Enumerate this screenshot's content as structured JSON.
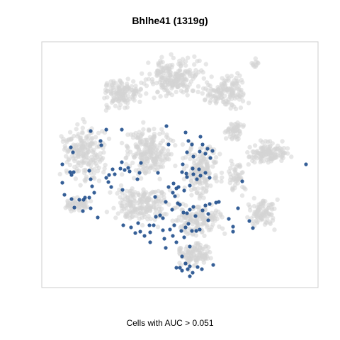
{
  "chart_data": {
    "type": "scatter",
    "title": "Bhlhe41 (1319g)",
    "xlabel": "Cells with AUC > 0.051",
    "ylabel": "",
    "axes_visible": false,
    "grid": false,
    "colors": {
      "background_cells": "#d3d3d3",
      "highlighted_cells": "#1f4e8c",
      "frame": "#cccccc"
    },
    "series": [
      {
        "role": "highlighted",
        "points": [
          [
            128,
            185
          ],
          [
            150,
            183
          ],
          [
            172,
            183
          ],
          [
            235,
            178
          ],
          [
            262,
            187
          ],
          [
            100,
            208
          ],
          [
            103,
            215
          ],
          [
            142,
            199
          ],
          [
            143,
            205
          ],
          [
            238,
            204
          ],
          [
            266,
            199
          ],
          [
            271,
            204
          ],
          [
            283,
            193
          ],
          [
            286,
            204
          ],
          [
            293,
            210
          ],
          [
            300,
            213
          ],
          [
            264,
            215
          ],
          [
            273,
            221
          ],
          [
            282,
            214
          ],
          [
            290,
            217
          ],
          [
            297,
            223
          ],
          [
            88,
            232
          ],
          [
            99,
            243
          ],
          [
            104,
            243
          ],
          [
            101,
            247
          ],
          [
            88,
            258
          ],
          [
            126,
            241
          ],
          [
            128,
            253
          ],
          [
            150,
            251
          ],
          [
            153,
            257
          ],
          [
            154,
            247
          ],
          [
            162,
            246
          ],
          [
            159,
            239
          ],
          [
            172,
            229
          ],
          [
            170,
            238
          ],
          [
            181,
            237
          ],
          [
            183,
            242
          ],
          [
            176,
            240
          ],
          [
            197,
            244
          ],
          [
            223,
            244
          ],
          [
            199,
            230
          ],
          [
            194,
            253
          ],
          [
            258,
            232
          ],
          [
            263,
            245
          ],
          [
            257,
            243
          ],
          [
            264,
            250
          ],
          [
            273,
            246
          ],
          [
            278,
            253
          ],
          [
            283,
            248
          ],
          [
            281,
            239
          ],
          [
            290,
            244
          ],
          [
            272,
            238
          ],
          [
            245,
            259
          ],
          [
            252,
            264
          ],
          [
            260,
            269
          ],
          [
            249,
            266
          ],
          [
            268,
            262
          ],
          [
            296,
            251
          ],
          [
            342,
            256
          ],
          [
            91,
            275
          ],
          [
            101,
            281
          ],
          [
            105,
            293
          ],
          [
            112,
            282
          ],
          [
            118,
            282
          ],
          [
            120,
            279
          ],
          [
            126,
            279
          ],
          [
            117,
            298
          ],
          [
            128,
            294
          ],
          [
            130,
            263
          ],
          [
            133,
            272
          ],
          [
            157,
            264
          ],
          [
            173,
            268
          ],
          [
            219,
            278
          ],
          [
            234,
            285
          ],
          [
            244,
            272
          ],
          [
            238,
            264
          ],
          [
            247,
            277
          ],
          [
            251,
            287
          ],
          [
            254,
            289
          ],
          [
            259,
            300
          ],
          [
            243,
            296
          ],
          [
            220,
            306
          ],
          [
            226,
            304
          ],
          [
            230,
            308
          ],
          [
            264,
            301
          ],
          [
            268,
            296
          ],
          [
            273,
            292
          ],
          [
            286,
            297
          ],
          [
            290,
            290
          ],
          [
            296,
            288
          ],
          [
            305,
            286
          ],
          [
            309,
            285
          ],
          [
            336,
            294
          ],
          [
            294,
            311
          ],
          [
            294,
            302
          ],
          [
            276,
            305
          ],
          [
            138,
            307
          ],
          [
            174,
            318
          ],
          [
            185,
            321
          ],
          [
            191,
            329
          ],
          [
            198,
            327
          ],
          [
            212,
            328
          ],
          [
            217,
            318
          ],
          [
            230,
            325
          ],
          [
            240,
            324
          ],
          [
            246,
            318
          ],
          [
            244,
            333
          ],
          [
            256,
            326
          ],
          [
            262,
            321
          ],
          [
            266,
            316
          ],
          [
            271,
            326
          ],
          [
            277,
            326
          ],
          [
            282,
            324
          ],
          [
            249,
            342
          ],
          [
            234,
            350
          ],
          [
            268,
            348
          ],
          [
            260,
            335
          ],
          [
            323,
            309
          ],
          [
            329,
            320
          ],
          [
            329,
            327
          ],
          [
            352,
            312
          ],
          [
            357,
            322
          ],
          [
            257,
            362
          ],
          [
            262,
            372
          ],
          [
            268,
            376
          ],
          [
            254,
            378
          ],
          [
            257,
            382
          ],
          [
            249,
            378
          ],
          [
            265,
            380
          ],
          [
            272,
            385
          ],
          [
            279,
            377
          ],
          [
            268,
            390
          ],
          [
            285,
            380
          ],
          [
            301,
            374
          ],
          [
            232,
            337
          ],
          [
            211,
            318
          ],
          [
            432,
            232
          ],
          [
            204,
            333
          ],
          [
            212,
            342
          ],
          [
            195,
            315
          ]
        ]
      }
    ]
  }
}
